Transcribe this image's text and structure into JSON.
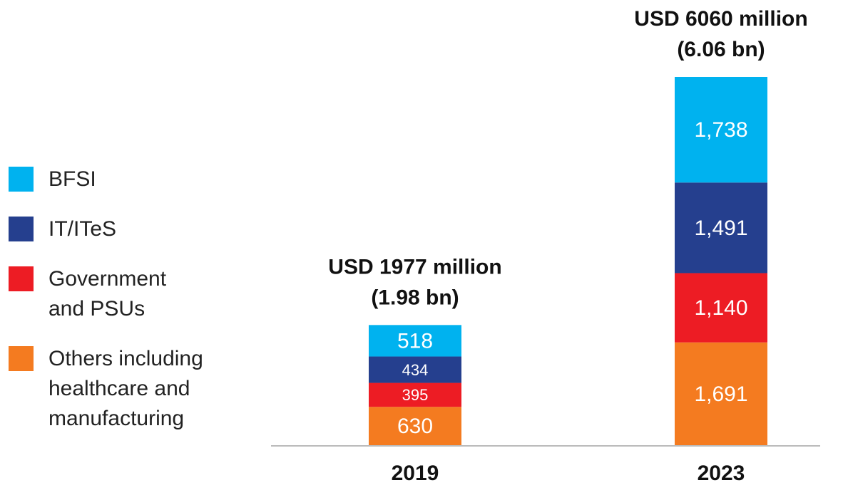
{
  "chart_data": {
    "type": "stacked-bar",
    "categories": [
      "2019",
      "2023"
    ],
    "series": [
      {
        "name": "Others including healthcare and manufacturing",
        "color": "#f47b20",
        "values": [
          630,
          1691
        ],
        "value_labels": [
          "630",
          "1,691"
        ]
      },
      {
        "name": "Government and PSUs",
        "color": "#ed1c24",
        "values": [
          395,
          1140
        ],
        "value_labels": [
          "395",
          "1,140"
        ]
      },
      {
        "name": "IT/ITeS",
        "color": "#253f8e",
        "values": [
          434,
          1491
        ],
        "value_labels": [
          "434",
          "1,491"
        ]
      },
      {
        "name": "BFSI",
        "color": "#00b2ef",
        "values": [
          518,
          1738
        ],
        "value_labels": [
          "518",
          "1,738"
        ]
      }
    ],
    "annotations": [
      [
        "USD 1977 million",
        "(1.98 bn)"
      ],
      [
        "USD 6060 million",
        "(6.06 bn)"
      ]
    ],
    "ylim": [
      0,
      6060
    ]
  }
}
